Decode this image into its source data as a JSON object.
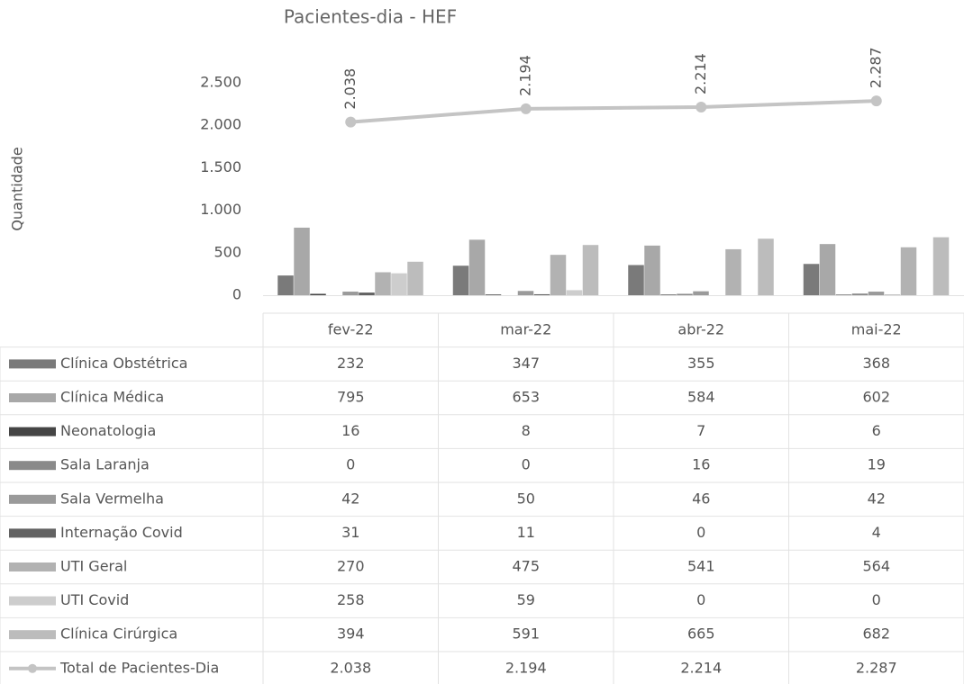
{
  "chart_data": {
    "type": "bar",
    "title": "Pacientes-dia - HEF",
    "y_label": "Quantidade",
    "categories": [
      "fev-22",
      "mar-22",
      "abr-22",
      "mai-22"
    ],
    "ylim": [
      0,
      2500
    ],
    "yticks": [
      0,
      500,
      {
        "value": 1000,
        "label": "1.000"
      },
      {
        "value": 1500,
        "label": "1.500"
      },
      {
        "value": 2000,
        "label": "2.000"
      },
      {
        "value": 2500,
        "label": "2.500"
      }
    ],
    "grid": false,
    "series": [
      {
        "name": "Clínica Obstétrica",
        "color": "#7a7a7a",
        "values": [
          232,
          347,
          355,
          368
        ]
      },
      {
        "name": "Clínica Médica",
        "color": "#a8a8a8",
        "values": [
          795,
          653,
          584,
          602
        ]
      },
      {
        "name": "Neonatologia",
        "color": "#454545",
        "values": [
          16,
          8,
          7,
          6
        ]
      },
      {
        "name": "Sala Laranja",
        "color": "#8a8a8a",
        "values": [
          0,
          0,
          16,
          19
        ]
      },
      {
        "name": "Sala Vermelha",
        "color": "#9a9a9a",
        "values": [
          42,
          50,
          46,
          42
        ]
      },
      {
        "name": "Internação Covid",
        "color": "#626262",
        "values": [
          31,
          11,
          0,
          4
        ]
      },
      {
        "name": "UTI Geral",
        "color": "#b2b2b2",
        "values": [
          270,
          475,
          541,
          564
        ]
      },
      {
        "name": "UTI Covid",
        "color": "#cdcdcd",
        "values": [
          258,
          59,
          0,
          0
        ]
      },
      {
        "name": "Clínica Cirúrgica",
        "color": "#bcbcbc",
        "values": [
          394,
          591,
          665,
          682
        ]
      },
      {
        "name": "Total de Pacientes-Dia",
        "type": "line",
        "color": "#c4c4c4",
        "values": [
          2038,
          2194,
          2214,
          2287
        ],
        "value_labels": [
          "2.038",
          "2.194",
          "2.214",
          "2.287"
        ]
      }
    ]
  }
}
